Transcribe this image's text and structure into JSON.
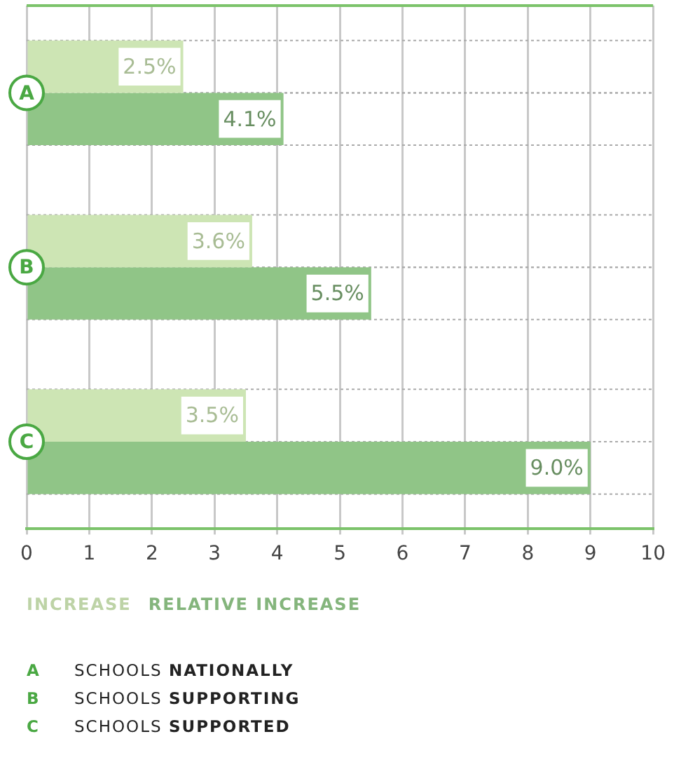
{
  "chart_data": {
    "type": "bar",
    "orientation": "horizontal",
    "categories": [
      "A",
      "B",
      "C"
    ],
    "series": [
      {
        "name": "INCREASE",
        "color": "#cde5b4",
        "values": [
          2.5,
          3.6,
          3.5
        ],
        "value_labels": [
          "2.5%",
          "3.6%",
          "3.5%"
        ]
      },
      {
        "name": "RELATIVE INCREASE",
        "color": "#90c587",
        "values": [
          4.1,
          5.5,
          9.0
        ],
        "value_labels": [
          "4.1%",
          "5.5%",
          "9.0%"
        ]
      }
    ],
    "xlim": [
      0,
      10
    ],
    "xticks": [
      0,
      1,
      2,
      3,
      4,
      5,
      6,
      7,
      8,
      9,
      10
    ],
    "grid": true,
    "legend": "bottom",
    "annotations": [
      "A SCHOOLS NATIONALLY",
      "B SCHOOLS SUPPORTING",
      "C SCHOOLS SUPPORTED"
    ]
  }
}
